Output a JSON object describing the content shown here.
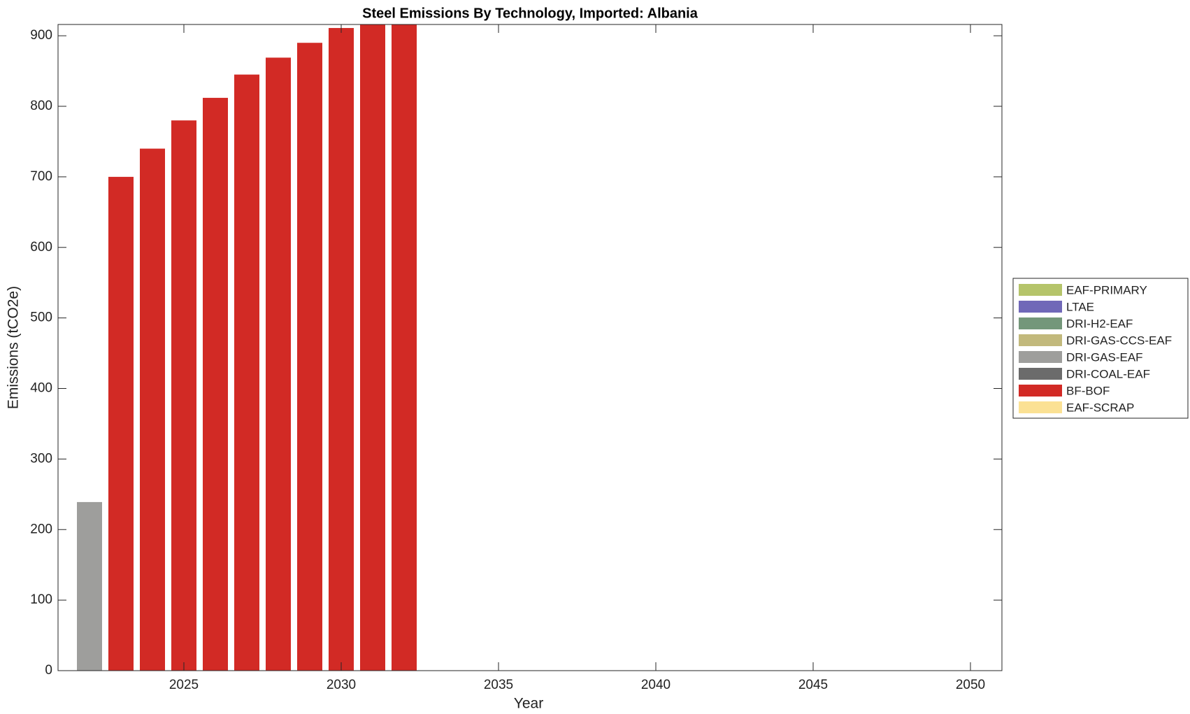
{
  "chart_data": {
    "type": "bar",
    "stacked": true,
    "title": "Steel Emissions By Technology, Imported: Albania",
    "x_label": "Year",
    "y_label": "Emissions (tCO2e)",
    "x": [
      2022,
      2023,
      2024,
      2025,
      2026,
      2027,
      2028,
      2029,
      2030,
      2031,
      2032
    ],
    "series": [
      {
        "name": "EAF-PRIMARY",
        "color": "#b5c46a",
        "values": [
          0,
          0,
          0,
          0,
          0,
          0,
          0,
          0,
          0,
          0,
          0
        ]
      },
      {
        "name": "LTAE",
        "color": "#7068b8",
        "values": [
          0,
          0,
          0,
          0,
          0,
          0,
          0,
          0,
          0,
          0,
          0
        ]
      },
      {
        "name": "DRI-H2-EAF",
        "color": "#74977a",
        "values": [
          0,
          0,
          0,
          0,
          0,
          0,
          0,
          0,
          0,
          0,
          0
        ]
      },
      {
        "name": "DRI-GAS-CCS-EAF",
        "color": "#c2b97c",
        "values": [
          0,
          0,
          0,
          0,
          0,
          0,
          0,
          0,
          0,
          0,
          0
        ]
      },
      {
        "name": "DRI-GAS-EAF",
        "color": "#9e9e9c",
        "values": [
          239,
          0,
          0,
          0,
          0,
          0,
          0,
          0,
          0,
          0,
          0
        ]
      },
      {
        "name": "DRI-COAL-EAF",
        "color": "#6b6b6b",
        "values": [
          0,
          0,
          0,
          0,
          0,
          0,
          0,
          0,
          0,
          0,
          0
        ]
      },
      {
        "name": "BF-BOF",
        "color": "#d22a25",
        "values": [
          0,
          700,
          740,
          780,
          812,
          845,
          869,
          890,
          911,
          916,
          916
        ]
      },
      {
        "name": "EAF-SCRAP",
        "color": "#fbe194",
        "values": [
          0,
          0,
          0,
          0,
          0,
          0,
          0,
          0,
          0,
          0,
          0
        ]
      }
    ],
    "xlim": [
      2021,
      2051
    ],
    "xticks": [
      2025,
      2030,
      2035,
      2040,
      2045,
      2050
    ],
    "ylim": [
      0,
      916
    ],
    "yticks": [
      0,
      100,
      200,
      300,
      400,
      500,
      600,
      700,
      800,
      900
    ],
    "legend": "right"
  }
}
